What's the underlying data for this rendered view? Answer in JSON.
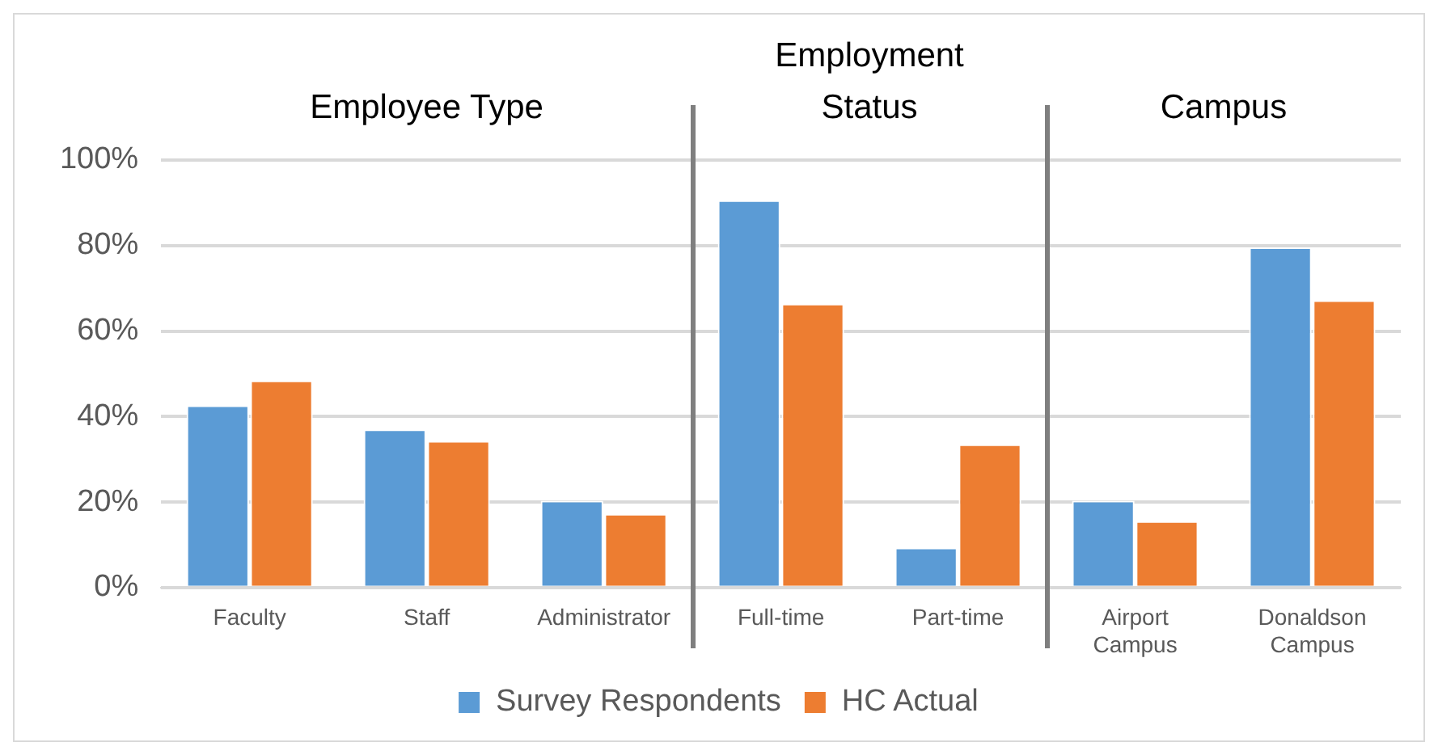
{
  "chart_data": {
    "type": "bar",
    "categories": [
      "Faculty",
      "Staff",
      "Administrator",
      "Full-time",
      "Part-time",
      "Airport Campus",
      "Donaldson Campus"
    ],
    "series": [
      {
        "name": "Survey Respondents",
        "color": "#5b9bd5",
        "values": [
          42.6,
          37.0,
          20.3,
          90.6,
          9.3,
          20.3,
          79.6
        ]
      },
      {
        "name": "HC Actual",
        "color": "#ed7d31",
        "values": [
          48.4,
          34.3,
          17.2,
          66.4,
          33.5,
          15.5,
          67.2
        ]
      }
    ],
    "ylim": [
      0,
      100
    ],
    "yticks": [
      {
        "value": 0,
        "label": "0%"
      },
      {
        "value": 20,
        "label": "20%"
      },
      {
        "value": 40,
        "label": "40%"
      },
      {
        "value": 60,
        "label": "60%"
      },
      {
        "value": 80,
        "label": "80%"
      },
      {
        "value": 100,
        "label": "100%"
      }
    ],
    "grid": "y",
    "legend": "bottom",
    "annotations": [
      "Employee Type",
      "Employment Status",
      "Campus"
    ]
  }
}
